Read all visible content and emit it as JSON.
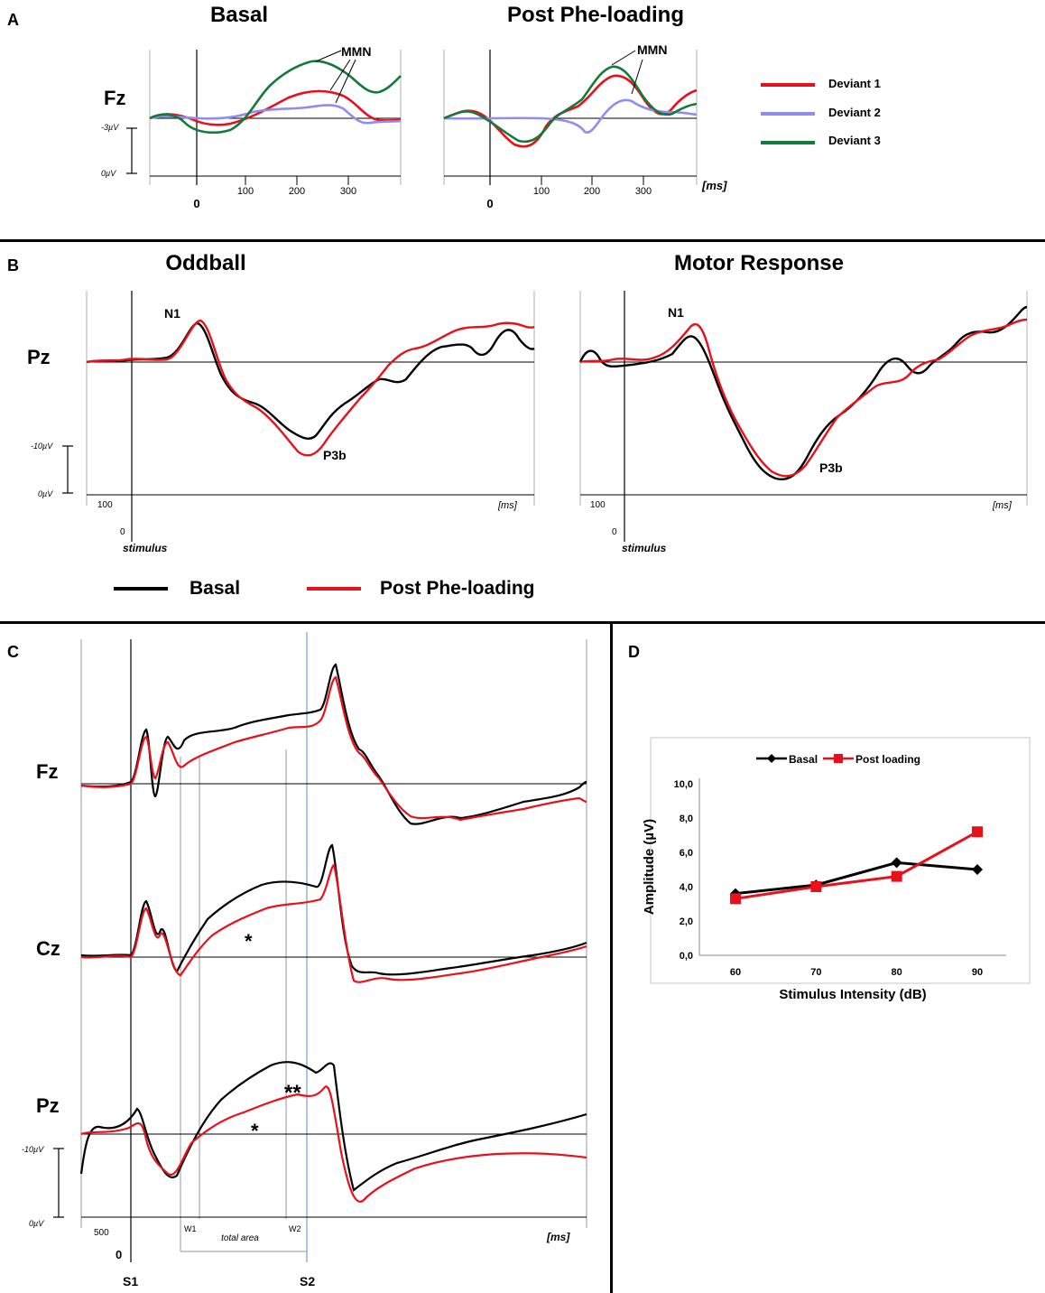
{
  "colors": {
    "red": "#e8101a",
    "blue": "#8f8df0",
    "green": "#137a3a",
    "black": "#000000",
    "grid": "#999999",
    "box": "#e4e4e4"
  },
  "panels": {
    "A": "A",
    "B": "B",
    "C": "C",
    "D": "D"
  },
  "panelA": {
    "basal_title": "Basal",
    "post_title": "Post Phe-loading",
    "channel": "Fz",
    "mmn": "MMN",
    "scale_top": "-3µV",
    "scale_bottom": "0µV",
    "zero": "0",
    "ms": "[ms]",
    "ticks": [
      "100",
      "200",
      "300"
    ],
    "legend": [
      "Deviant 1",
      "Deviant 2",
      "Deviant 3"
    ]
  },
  "panelB": {
    "left_title": "Oddball",
    "right_title": "Motor Response",
    "channel": "Pz",
    "n1": "N1",
    "p3b": "P3b",
    "scale_top": "-10µV",
    "scale_bottom": "0µV",
    "tick_100": "100",
    "zero": "0",
    "ms": "[ms]",
    "stimulus": "stimulus",
    "legend_basal": "Basal",
    "legend_post": "Post Phe-loading"
  },
  "panelC": {
    "channels": [
      "Fz",
      "Cz",
      "Pz"
    ],
    "star": "*",
    "double_star": "**",
    "scale_top": "-10µV",
    "scale_bottom": "0µV",
    "tick_500": "500",
    "zero": "0",
    "w1": "W1",
    "w2": "W2",
    "total_area": "total area",
    "ms": "[ms]",
    "s1": "S1",
    "s2": "S2"
  },
  "chart_data": {
    "type": "line",
    "title": "",
    "xlabel": "Stimulus Intensity (dB)",
    "ylabel": "Amplitude (µV)",
    "categories": [
      "60",
      "70",
      "80",
      "90"
    ],
    "y_ticks": [
      "0,0",
      "2,0",
      "4,0",
      "6,0",
      "8,0",
      "10,0"
    ],
    "ylim": [
      0,
      10
    ],
    "legend": "top",
    "series": [
      {
        "name": "Basal",
        "values": [
          3.6,
          4.1,
          5.4,
          5.0
        ]
      },
      {
        "name": "Post loading",
        "values": [
          3.3,
          4.0,
          4.6,
          7.2
        ]
      }
    ]
  }
}
